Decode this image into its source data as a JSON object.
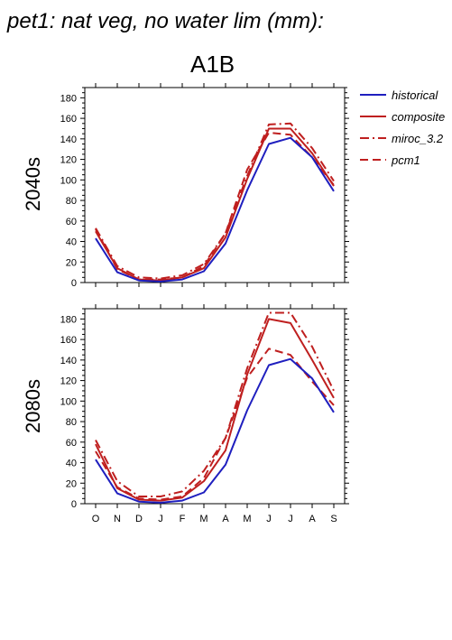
{
  "title": "pet1: nat veg, no water lim (mm):",
  "subtitle": "A1B",
  "chart_data": {
    "type": "line",
    "categories": [
      "O",
      "N",
      "D",
      "J",
      "F",
      "M",
      "A",
      "M",
      "J",
      "J",
      "A",
      "S"
    ],
    "ylim": [
      0,
      190
    ],
    "yticks": [
      0,
      20,
      40,
      60,
      80,
      100,
      120,
      140,
      160,
      180
    ],
    "grid": false,
    "legend_position": "top-right",
    "legend": [
      {
        "name": "historical",
        "color": "#1f1fbf",
        "style": "solid"
      },
      {
        "name": "composite",
        "color": "#bf1f1f",
        "style": "solid"
      },
      {
        "name": "miroc_3.2",
        "color": "#bf1f1f",
        "style": "dashdot"
      },
      {
        "name": "pcm1",
        "color": "#bf1f1f",
        "style": "dashed"
      }
    ],
    "panels": [
      {
        "label": "2040s",
        "series": [
          {
            "name": "historical",
            "values": [
              43,
              10,
              2,
              1,
              3,
              11,
              38,
              90,
              135,
              141,
              122,
              89
            ]
          },
          {
            "name": "composite",
            "values": [
              50,
              14,
              3,
              2,
              5,
              14,
              44,
              101,
              150,
              150,
              126,
              94
            ]
          },
          {
            "name": "miroc_3.2",
            "values": [
              53,
              16,
              5,
              4,
              7,
              18,
              48,
              104,
              154,
              155,
              131,
              99
            ]
          },
          {
            "name": "pcm1",
            "values": [
              52,
              13,
              3,
              3,
              5,
              16,
              48,
              110,
              146,
              144,
              122,
              95
            ]
          }
        ]
      },
      {
        "label": "2080s",
        "series": [
          {
            "name": "historical",
            "values": [
              43,
              10,
              2,
              1,
              3,
              11,
              38,
              91,
              135,
              141,
              122,
              89
            ]
          },
          {
            "name": "composite",
            "values": [
              58,
              15,
              4,
              3,
              6,
              22,
              52,
              126,
              180,
              176,
              140,
              103
            ]
          },
          {
            "name": "miroc_3.2",
            "values": [
              62,
              22,
              7,
              7,
              12,
              32,
              64,
              132,
              186,
              186,
              153,
              110
            ]
          },
          {
            "name": "pcm1",
            "values": [
              51,
              16,
              5,
              4,
              7,
              25,
              64,
              123,
              151,
              145,
              119,
              96
            ]
          }
        ]
      }
    ]
  }
}
